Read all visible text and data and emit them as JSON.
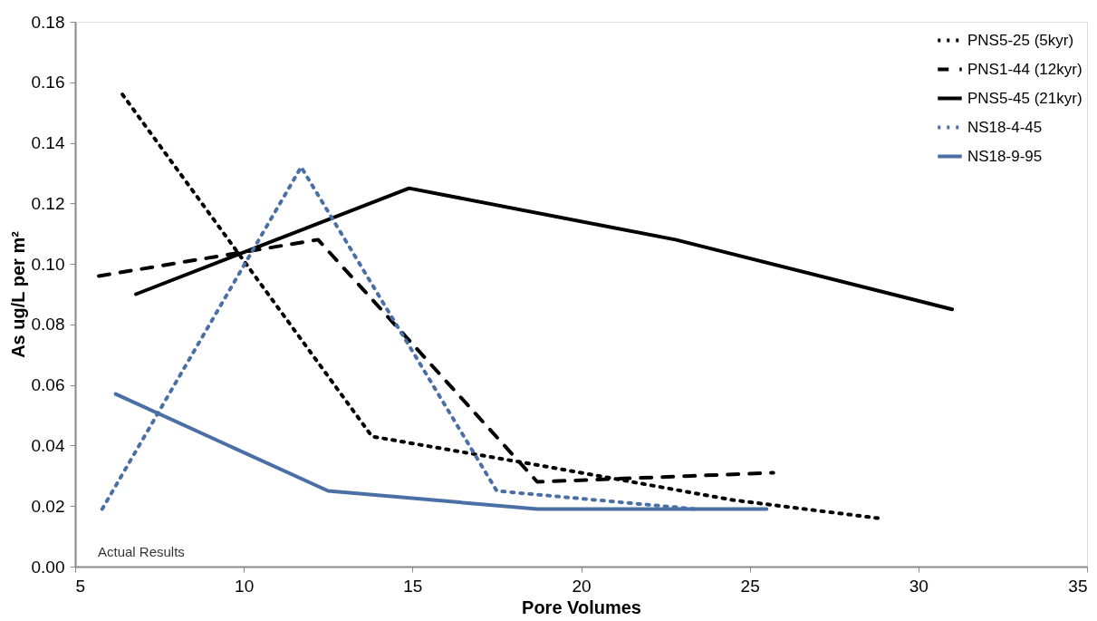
{
  "chart_data": {
    "type": "line",
    "xlabel": "Pore Volumes",
    "ylabel": "As ug/L per m²",
    "xlim": [
      5,
      35
    ],
    "xticks": [
      5,
      10,
      15,
      20,
      25,
      30,
      35
    ],
    "ylim": [
      0,
      0.18
    ],
    "yticks": [
      {
        "value": 0,
        "label": "0.00"
      },
      {
        "value": 0.02,
        "label": "0.02"
      },
      {
        "value": 0.04,
        "label": "0.04"
      },
      {
        "value": 0.06,
        "label": "0.06"
      },
      {
        "value": 0.08,
        "label": "0.08"
      },
      {
        "value": 0.1,
        "label": "0.10"
      },
      {
        "value": 0.12,
        "label": "0.12"
      },
      {
        "value": 0.14,
        "label": "0.14"
      },
      {
        "value": 0.16,
        "label": "0.16"
      },
      {
        "value": 0.18,
        "label": "0.18"
      }
    ],
    "grid": false,
    "legend": "top right",
    "marker": "none",
    "annotations": [
      "Actual Results"
    ],
    "series": [
      {
        "name": "PNS5-25 (5kyr)",
        "color": "#000000",
        "line_style": "dotted",
        "x": [
          6.4,
          13.8,
          19,
          24.5,
          28.8
        ],
        "values": [
          0.156,
          0.043,
          0.033,
          0.022,
          0.016
        ]
      },
      {
        "name": "PNS1-44 (12kyr)",
        "color": "#000000",
        "line_style": "dashed",
        "x": [
          5.7,
          12.2,
          18.7,
          25.7
        ],
        "values": [
          0.096,
          0.108,
          0.028,
          0.031
        ]
      },
      {
        "name": "PNS5-45 (21kyr)",
        "color": "#000000",
        "line_style": "solid",
        "x": [
          6.8,
          14.9,
          22.8,
          31.0
        ],
        "values": [
          0.09,
          0.125,
          0.108,
          0.085
        ]
      },
      {
        "name": "NS18-4-45",
        "color": "#4a6fa5",
        "line_style": "dotted",
        "x": [
          5.8,
          11.7,
          17.5,
          23.4
        ],
        "values": [
          0.019,
          0.132,
          0.025,
          0.019
        ]
      },
      {
        "name": "NS18-9-95",
        "color": "#4a6fa5",
        "line_style": "solid",
        "x": [
          6.2,
          12.5,
          18.7,
          25.5
        ],
        "values": [
          0.057,
          0.025,
          0.019,
          0.019
        ]
      }
    ]
  }
}
